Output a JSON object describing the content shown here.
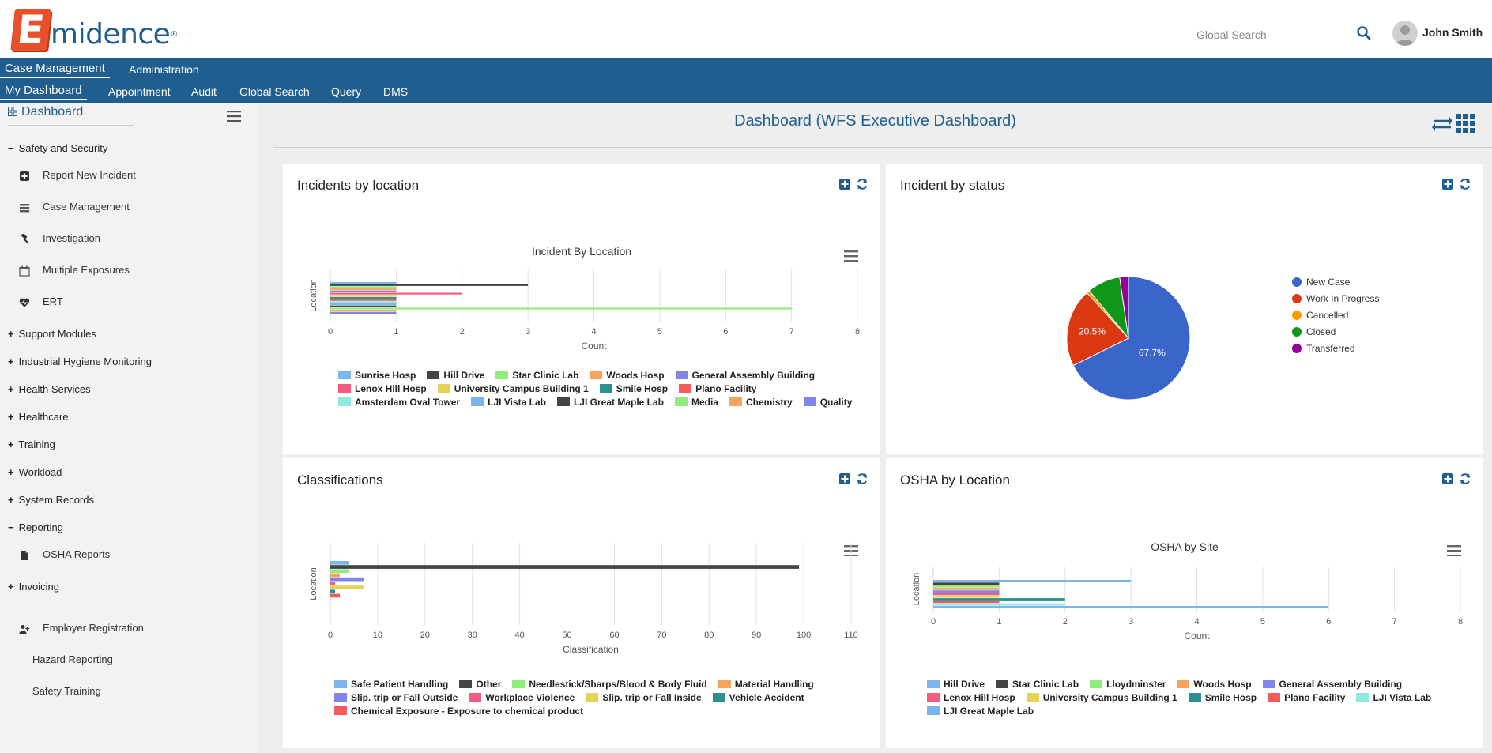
{
  "app": {
    "brand_letter": "E",
    "brand_rest": "midence",
    "brand_reg": "®"
  },
  "header": {
    "search_placeholder": "Global Search",
    "user_name": "John Smith"
  },
  "nav_top": [
    {
      "label": "Case Management",
      "active": true
    },
    {
      "label": "Administration",
      "active": false
    }
  ],
  "nav_sub": [
    {
      "label": "My Dashboard",
      "active": true
    },
    {
      "label": "Appointment"
    },
    {
      "label": "Audit"
    },
    {
      "label": "Global Search"
    },
    {
      "label": "Query"
    },
    {
      "label": "DMS"
    }
  ],
  "sidebar": {
    "title": "Dashboard",
    "sections": [
      {
        "label": "Safety and Security",
        "expanded": true
      },
      {
        "label": "Support Modules"
      },
      {
        "label": "Industrial Hygiene Monitoring"
      },
      {
        "label": "Health Services"
      },
      {
        "label": "Healthcare"
      },
      {
        "label": "Training"
      },
      {
        "label": "Workload"
      },
      {
        "label": "System Records"
      },
      {
        "label": "Reporting",
        "expanded": true
      },
      {
        "label": "Invoicing"
      }
    ],
    "safety_items": [
      {
        "label": "Report New Incident",
        "icon": "plus-square-icon"
      },
      {
        "label": "Case Management",
        "icon": "list-icon"
      },
      {
        "label": "Investigation",
        "icon": "gavel-icon"
      },
      {
        "label": "Multiple Exposures",
        "icon": "calendar-icon"
      },
      {
        "label": "ERT",
        "icon": "heartbeat-icon"
      }
    ],
    "reporting_items": [
      {
        "label": "OSHA Reports",
        "icon": "file-icon"
      }
    ],
    "extra_items": [
      {
        "label": "Employer Registration",
        "icon": "user-plus-icon"
      },
      {
        "label": "Hazard Reporting"
      },
      {
        "label": "Safety Training"
      }
    ]
  },
  "dashboard": {
    "title": "Dashboard (WFS Executive Dashboard)"
  },
  "panels": {
    "incidents_by_location": {
      "title": "Incidents by location"
    },
    "incident_by_status": {
      "title": "Incident by status"
    },
    "classifications": {
      "title": "Classifications"
    },
    "osha_by_location": {
      "title": "OSHA by Location"
    }
  },
  "chart_data": [
    {
      "id": "incidents_by_location",
      "type": "bar",
      "orientation": "horizontal",
      "title": "Incident By Location",
      "xlabel": "Count",
      "ylabel": "Location",
      "xlim": [
        0,
        8
      ],
      "xticks": [
        0,
        1,
        2,
        3,
        4,
        5,
        6,
        7,
        8
      ],
      "legend_position": "bottom",
      "series": [
        {
          "name": "Sunrise Hosp",
          "color": "#7cb5ec",
          "value": 1
        },
        {
          "name": "Hill Drive",
          "color": "#434348",
          "value": 3
        },
        {
          "name": "Star Clinic Lab",
          "color": "#90ed7d",
          "value": 1
        },
        {
          "name": "Woods Hosp",
          "color": "#f7a35c",
          "value": 1
        },
        {
          "name": "General Assembly Building",
          "color": "#8085e9",
          "value": 1
        },
        {
          "name": "Lenox Hill Hosp",
          "color": "#f15c80",
          "value": 2
        },
        {
          "name": "University Campus Building 1",
          "color": "#e4d354",
          "value": 1
        },
        {
          "name": "Smile Hosp",
          "color": "#2b908f",
          "value": 1
        },
        {
          "name": "Plano Facility",
          "color": "#f45b5b",
          "value": 1
        },
        {
          "name": "Amsterdam Oval Tower",
          "color": "#91e8e1",
          "value": 1
        },
        {
          "name": "LJI Vista Lab",
          "color": "#7cb5ec",
          "value": 1
        },
        {
          "name": "LJI Great Maple Lab",
          "color": "#434348",
          "value": 1
        },
        {
          "name": "Media",
          "color": "#90ed7d",
          "value": 7
        },
        {
          "name": "Chemistry",
          "color": "#f7a35c",
          "value": 1
        },
        {
          "name": "Quality",
          "color": "#8085e9",
          "value": 1
        }
      ]
    },
    {
      "id": "incident_by_status",
      "type": "pie",
      "legend_position": "right",
      "series": [
        {
          "name": "New Case",
          "color": "#3a66cc",
          "value": 67.7,
          "label": "67.7%"
        },
        {
          "name": "Work In Progress",
          "color": "#dc3912",
          "value": 20.5,
          "label": "20.5%"
        },
        {
          "name": "Cancelled",
          "color": "#ff9900",
          "value": 0.8
        },
        {
          "name": "Closed",
          "color": "#109618",
          "value": 8.7
        },
        {
          "name": "Transferred",
          "color": "#990099",
          "value": 2.3
        }
      ]
    },
    {
      "id": "classifications",
      "type": "bar",
      "orientation": "horizontal",
      "title": "",
      "xlabel": "Classification",
      "ylabel": "Location",
      "xlim": [
        0,
        110
      ],
      "xticks": [
        0,
        10,
        20,
        30,
        40,
        50,
        60,
        70,
        80,
        90,
        100,
        110
      ],
      "legend_position": "bottom",
      "series": [
        {
          "name": "Safe Patient Handling",
          "color": "#7cb5ec",
          "value": 4
        },
        {
          "name": "Other",
          "color": "#434348",
          "value": 99
        },
        {
          "name": "Needlestick/Sharps/Blood & Body Fluid",
          "color": "#90ed7d",
          "value": 4
        },
        {
          "name": "Material Handling",
          "color": "#f7a35c",
          "value": 2
        },
        {
          "name": "Slip. trip or Fall Outside",
          "color": "#8085e9",
          "value": 7
        },
        {
          "name": "Workplace Violence",
          "color": "#f15c80",
          "value": 1
        },
        {
          "name": "Slip. trip or Fall Inside",
          "color": "#e4d354",
          "value": 7
        },
        {
          "name": "Vehicle Accident",
          "color": "#2b908f",
          "value": 1
        },
        {
          "name": "Chemical Exposure - Exposure to chemical product",
          "color": "#f45b5b",
          "value": 2
        }
      ]
    },
    {
      "id": "osha_by_location",
      "type": "bar",
      "orientation": "horizontal",
      "title": "OSHA by Site",
      "xlabel": "Count",
      "ylabel": "Location",
      "xlim": [
        0,
        8
      ],
      "xticks": [
        0,
        1,
        2,
        3,
        4,
        5,
        6,
        7,
        8
      ],
      "legend_position": "bottom",
      "series": [
        {
          "name": "Hill Drive",
          "color": "#7cb5ec",
          "value": 3
        },
        {
          "name": "Star Clinic Lab",
          "color": "#434348",
          "value": 1
        },
        {
          "name": "Lloydminster",
          "color": "#90ed7d",
          "value": 1
        },
        {
          "name": "Woods Hosp",
          "color": "#f7a35c",
          "value": 1
        },
        {
          "name": "General Assembly Building",
          "color": "#8085e9",
          "value": 1
        },
        {
          "name": "Lenox Hill Hosp",
          "color": "#f15c80",
          "value": 1
        },
        {
          "name": "University Campus Building 1",
          "color": "#e4d354",
          "value": 1
        },
        {
          "name": "Smile Hosp",
          "color": "#2b908f",
          "value": 2
        },
        {
          "name": "Plano Facility",
          "color": "#f45b5b",
          "value": 1
        },
        {
          "name": "LJI Vista Lab",
          "color": "#91e8e1",
          "value": 2
        },
        {
          "name": "LJI Great Maple Lab",
          "color": "#7cb5ec",
          "value": 6
        }
      ]
    }
  ]
}
